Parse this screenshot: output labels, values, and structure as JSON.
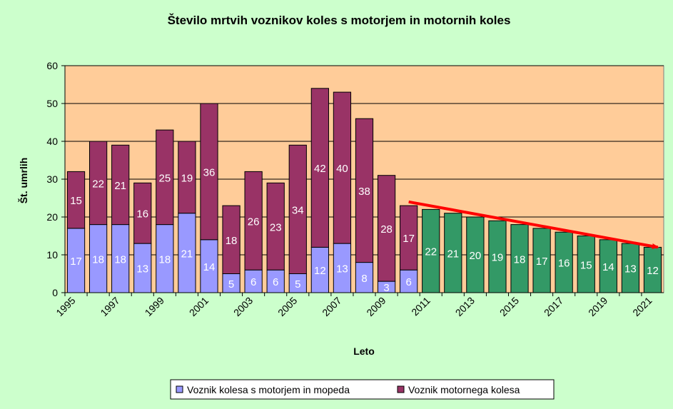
{
  "chart_data": {
    "type": "bar",
    "stacked": true,
    "title": "Število mrtvih voznikov koles s motorjem in motornih koles",
    "xlabel": "Leto",
    "ylabel": "Št. umrlih",
    "ylim": [
      0,
      60
    ],
    "yticks": [
      0,
      10,
      20,
      30,
      40,
      50,
      60
    ],
    "grid": true,
    "legend_position": "bottom",
    "categories": [
      "1995",
      "1996",
      "1997",
      "1998",
      "1999",
      "2000",
      "2001",
      "2002",
      "2003",
      "2004",
      "2005",
      "2006",
      "2007",
      "2008",
      "2009",
      "2010",
      "2011",
      "2012",
      "2013",
      "2014",
      "2015",
      "2016",
      "2017",
      "2018",
      "2019",
      "2020",
      "2021"
    ],
    "xtick_labels": [
      "1995",
      "1997",
      "1999",
      "2001",
      "2003",
      "2005",
      "2007",
      "2009",
      "2011",
      "2013",
      "2015",
      "2017",
      "2019",
      "2021"
    ],
    "series": [
      {
        "name": "Voznik kolesa s motorjem in mopeda",
        "color": "#9999ff",
        "values": [
          17,
          18,
          18,
          13,
          18,
          21,
          14,
          5,
          6,
          6,
          5,
          12,
          13,
          8,
          3,
          6,
          null,
          null,
          null,
          null,
          null,
          null,
          null,
          null,
          null,
          null,
          null
        ]
      },
      {
        "name": "Voznik motornega kolesa",
        "color": "#993366",
        "values": [
          15,
          22,
          21,
          16,
          25,
          19,
          36,
          18,
          26,
          23,
          34,
          42,
          40,
          38,
          28,
          17,
          null,
          null,
          null,
          null,
          null,
          null,
          null,
          null,
          null,
          null,
          null
        ]
      }
    ],
    "projection": {
      "color": "#339966",
      "values": [
        null,
        null,
        null,
        null,
        null,
        null,
        null,
        null,
        null,
        null,
        null,
        null,
        null,
        null,
        null,
        null,
        22,
        21,
        20,
        19,
        18,
        17,
        16,
        15,
        14,
        13,
        12
      ]
    },
    "trend_arrow": {
      "color": "#ff0000",
      "from": {
        "x": "2010",
        "y": 24
      },
      "to": {
        "x": "2021",
        "y": 12
      }
    },
    "colors": {
      "plot_background": "#ffcc99",
      "page_background": "#ccffcc",
      "gridline": "#000000"
    }
  }
}
